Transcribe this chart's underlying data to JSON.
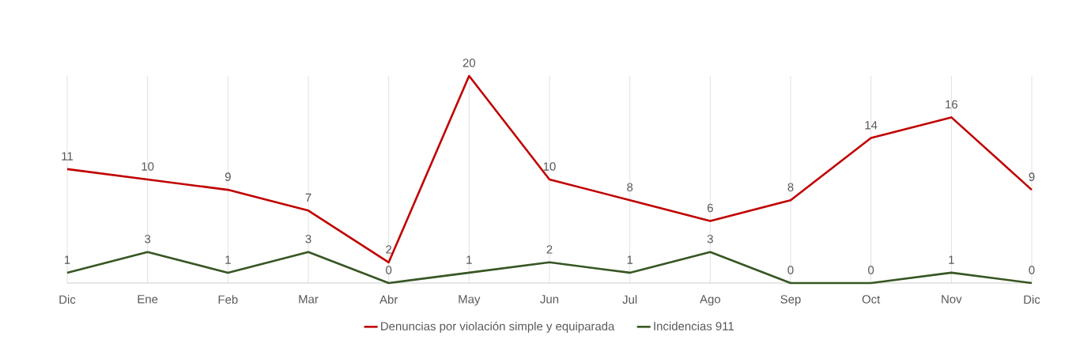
{
  "chart_data": {
    "type": "line",
    "categories": [
      "Dic",
      "Ene",
      "Feb",
      "Mar",
      "Abr",
      "May",
      "Jun",
      "Jul",
      "Ago",
      "Sep",
      "Oct",
      "Nov",
      "Dic"
    ],
    "series": [
      {
        "name": "Denuncias por violación simple y equiparada",
        "color": "#c00000",
        "values": [
          11,
          10,
          9,
          7,
          2,
          20,
          10,
          8,
          6,
          8,
          14,
          16,
          9
        ]
      },
      {
        "name": "Incidencias 911",
        "color": "#375623",
        "values": [
          1,
          3,
          1,
          3,
          0,
          1,
          2,
          1,
          3,
          0,
          0,
          1,
          0
        ]
      }
    ],
    "data_labels": true,
    "grid": "x",
    "legend": "bottom",
    "marker": "none",
    "line_style": "solid"
  }
}
